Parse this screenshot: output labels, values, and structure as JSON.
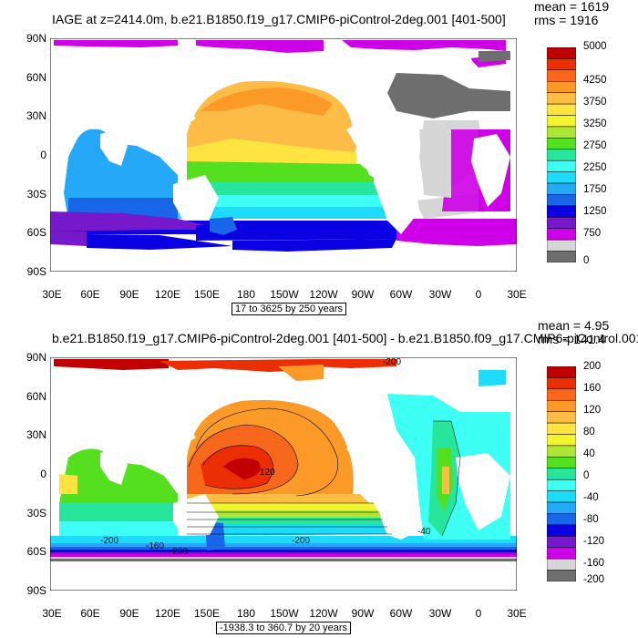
{
  "panel1": {
    "title": "IAGE at z=2414.0m, b.e21.B1850.f19_g17.CMIP6-piControl-2deg.001 [401-500]",
    "mean": "mean = 1619",
    "rms": "rms = 1916",
    "range_note": "17 to 3625 by 250 years",
    "colorbar": {
      "colors": [
        "#c00000",
        "#ec2e05",
        "#f7671c",
        "#fb9a26",
        "#fdbc46",
        "#ffe340",
        "#f2f52d",
        "#afe534",
        "#54df1f",
        "#27e59b",
        "#3dfff4",
        "#1ddcfa",
        "#25a8f7",
        "#1a66e9",
        "#0a00e3",
        "#7618cb",
        "#ce00e8",
        "#d6d6d6",
        "#6e6e6e"
      ],
      "labels": [
        "5000",
        "4250",
        "3750",
        "3250",
        "2750",
        "2250",
        "1750",
        "1250",
        "750",
        "0"
      ]
    }
  },
  "panel2": {
    "title": "b.e21.B1850.f19_g17.CMIP6-piControl-2deg.001 [401-500] - b.e21.B1850.f09_g17.CMIP6-piControl.001",
    "mean": "mean = 4.95",
    "rms": "rms = 141.4",
    "range_note": "-1938.3 to 360.7 by 20 years",
    "colorbar": {
      "colors": [
        "#c00000",
        "#ec2e05",
        "#f7671c",
        "#fb9a26",
        "#fdbc46",
        "#ffe340",
        "#f2f52d",
        "#afe534",
        "#54df1f",
        "#27e59b",
        "#3dfff4",
        "#1ddcfa",
        "#25a8f7",
        "#1a66e9",
        "#0a00e3",
        "#7618cb",
        "#ce00e8",
        "#d6d6d6",
        "#6e6e6e"
      ],
      "labels": [
        "200",
        "160",
        "120",
        "80",
        "40",
        "0",
        "-40",
        "-80",
        "-120",
        "-160",
        "-200"
      ]
    },
    "contour_labels": [
      "120",
      "-40",
      "-200",
      "-200",
      "-160",
      "-200",
      "-200"
    ]
  },
  "axes": {
    "lat_labels": [
      "90N",
      "60N",
      "30N",
      "0",
      "30S",
      "60S",
      "90S"
    ],
    "lon_labels": [
      "30E",
      "60E",
      "90E",
      "120E",
      "150E",
      "180",
      "150W",
      "120W",
      "90W",
      "60W",
      "30W",
      "0",
      "30E"
    ]
  }
}
